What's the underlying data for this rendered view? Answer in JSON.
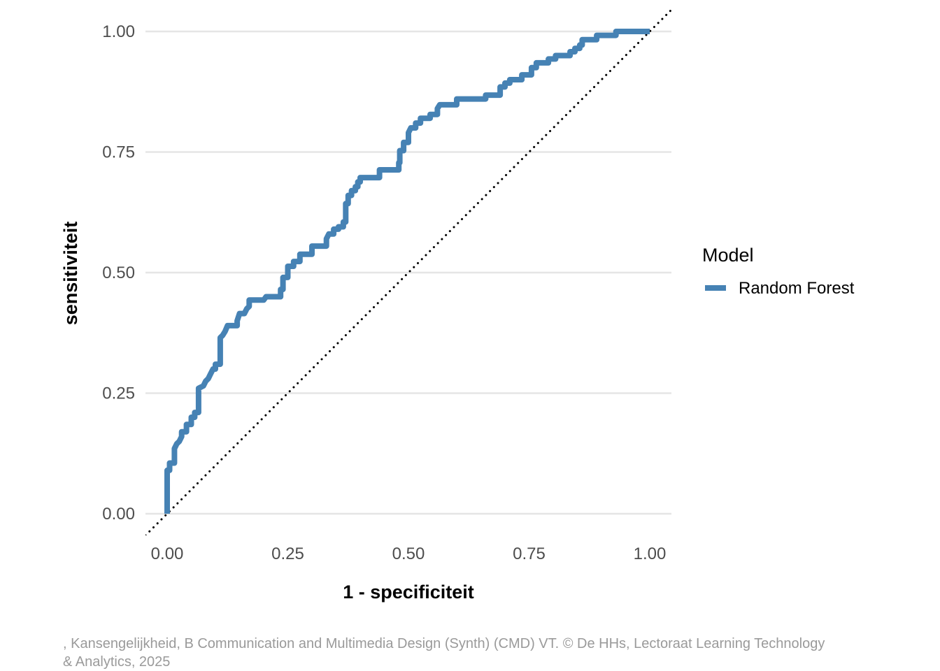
{
  "chart_data": {
    "type": "line",
    "title": "",
    "xlabel": "1 - specificiteit",
    "ylabel": "sensitiviteit",
    "xlim": [
      -0.045,
      1.045
    ],
    "ylim": [
      -0.045,
      1.045
    ],
    "x_ticks": [
      0,
      0.25,
      0.5,
      0.75,
      1
    ],
    "x_tick_labels": [
      "0.00",
      "0.25",
      "0.50",
      "0.75",
      "1.00"
    ],
    "y_ticks": [
      0,
      0.25,
      0.5,
      0.75,
      1
    ],
    "y_tick_labels": [
      "0.00",
      "0.25",
      "0.50",
      "0.75",
      "1.00"
    ],
    "grid": "horizontal major",
    "legend": {
      "title": "Model",
      "position": "right"
    },
    "reference_line": {
      "style": "dotted",
      "color": "#000000",
      "from": [
        -0.045,
        -0.045
      ],
      "to": [
        1.045,
        1.045
      ]
    },
    "series": [
      {
        "name": "Random Forest",
        "color": "#4682B4",
        "points": [
          [
            0.0,
            0.0
          ],
          [
            0.0,
            0.09
          ],
          [
            0.005,
            0.09
          ],
          [
            0.005,
            0.105
          ],
          [
            0.015,
            0.105
          ],
          [
            0.015,
            0.135
          ],
          [
            0.02,
            0.145
          ],
          [
            0.025,
            0.15
          ],
          [
            0.03,
            0.16
          ],
          [
            0.03,
            0.17
          ],
          [
            0.04,
            0.17
          ],
          [
            0.04,
            0.185
          ],
          [
            0.05,
            0.185
          ],
          [
            0.05,
            0.2
          ],
          [
            0.057,
            0.2
          ],
          [
            0.057,
            0.21
          ],
          [
            0.065,
            0.21
          ],
          [
            0.065,
            0.26
          ],
          [
            0.075,
            0.265
          ],
          [
            0.08,
            0.275
          ],
          [
            0.085,
            0.28
          ],
          [
            0.09,
            0.29
          ],
          [
            0.095,
            0.3
          ],
          [
            0.1,
            0.3
          ],
          [
            0.1,
            0.31
          ],
          [
            0.11,
            0.31
          ],
          [
            0.11,
            0.365
          ],
          [
            0.115,
            0.37
          ],
          [
            0.12,
            0.378
          ],
          [
            0.125,
            0.39
          ],
          [
            0.135,
            0.39
          ],
          [
            0.145,
            0.39
          ],
          [
            0.145,
            0.4
          ],
          [
            0.15,
            0.415
          ],
          [
            0.16,
            0.415
          ],
          [
            0.165,
            0.425
          ],
          [
            0.17,
            0.43
          ],
          [
            0.17,
            0.443
          ],
          [
            0.2,
            0.443
          ],
          [
            0.205,
            0.45
          ],
          [
            0.235,
            0.45
          ],
          [
            0.235,
            0.465
          ],
          [
            0.24,
            0.465
          ],
          [
            0.24,
            0.49
          ],
          [
            0.25,
            0.49
          ],
          [
            0.25,
            0.513
          ],
          [
            0.262,
            0.513
          ],
          [
            0.262,
            0.523
          ],
          [
            0.275,
            0.523
          ],
          [
            0.275,
            0.538
          ],
          [
            0.3,
            0.538
          ],
          [
            0.3,
            0.555
          ],
          [
            0.33,
            0.555
          ],
          [
            0.33,
            0.57
          ],
          [
            0.335,
            0.58
          ],
          [
            0.345,
            0.58
          ],
          [
            0.345,
            0.59
          ],
          [
            0.355,
            0.59
          ],
          [
            0.355,
            0.595
          ],
          [
            0.365,
            0.595
          ],
          [
            0.365,
            0.605
          ],
          [
            0.37,
            0.605
          ],
          [
            0.37,
            0.643
          ],
          [
            0.375,
            0.643
          ],
          [
            0.375,
            0.66
          ],
          [
            0.382,
            0.66
          ],
          [
            0.382,
            0.67
          ],
          [
            0.39,
            0.67
          ],
          [
            0.39,
            0.678
          ],
          [
            0.395,
            0.678
          ],
          [
            0.395,
            0.688
          ],
          [
            0.4,
            0.688
          ],
          [
            0.4,
            0.697
          ],
          [
            0.415,
            0.697
          ],
          [
            0.44,
            0.697
          ],
          [
            0.44,
            0.713
          ],
          [
            0.48,
            0.713
          ],
          [
            0.48,
            0.728
          ],
          [
            0.482,
            0.728
          ],
          [
            0.482,
            0.753
          ],
          [
            0.49,
            0.753
          ],
          [
            0.49,
            0.77
          ],
          [
            0.5,
            0.77
          ],
          [
            0.5,
            0.79
          ],
          [
            0.505,
            0.8
          ],
          [
            0.515,
            0.8
          ],
          [
            0.515,
            0.81
          ],
          [
            0.525,
            0.81
          ],
          [
            0.525,
            0.82
          ],
          [
            0.545,
            0.82
          ],
          [
            0.545,
            0.828
          ],
          [
            0.56,
            0.828
          ],
          [
            0.56,
            0.84
          ],
          [
            0.565,
            0.848
          ],
          [
            0.6,
            0.848
          ],
          [
            0.6,
            0.86
          ],
          [
            0.66,
            0.86
          ],
          [
            0.66,
            0.868
          ],
          [
            0.69,
            0.868
          ],
          [
            0.69,
            0.885
          ],
          [
            0.7,
            0.885
          ],
          [
            0.7,
            0.893
          ],
          [
            0.71,
            0.893
          ],
          [
            0.71,
            0.9
          ],
          [
            0.735,
            0.9
          ],
          [
            0.735,
            0.91
          ],
          [
            0.755,
            0.91
          ],
          [
            0.755,
            0.925
          ],
          [
            0.765,
            0.925
          ],
          [
            0.765,
            0.935
          ],
          [
            0.79,
            0.935
          ],
          [
            0.79,
            0.943
          ],
          [
            0.805,
            0.943
          ],
          [
            0.805,
            0.95
          ],
          [
            0.835,
            0.95
          ],
          [
            0.835,
            0.958
          ],
          [
            0.845,
            0.958
          ],
          [
            0.845,
            0.965
          ],
          [
            0.855,
            0.965
          ],
          [
            0.855,
            0.972
          ],
          [
            0.86,
            0.972
          ],
          [
            0.86,
            0.983
          ],
          [
            0.89,
            0.983
          ],
          [
            0.89,
            0.992
          ],
          [
            0.93,
            0.992
          ],
          [
            0.93,
            1.0
          ],
          [
            1.0,
            1.0
          ]
        ]
      }
    ]
  },
  "caption": ", Kansengelijkheid, B Communication and Multimedia Design (Synth) (CMD) VT. © De HHs, Lectoraat Learning Technology & Analytics, 2025"
}
